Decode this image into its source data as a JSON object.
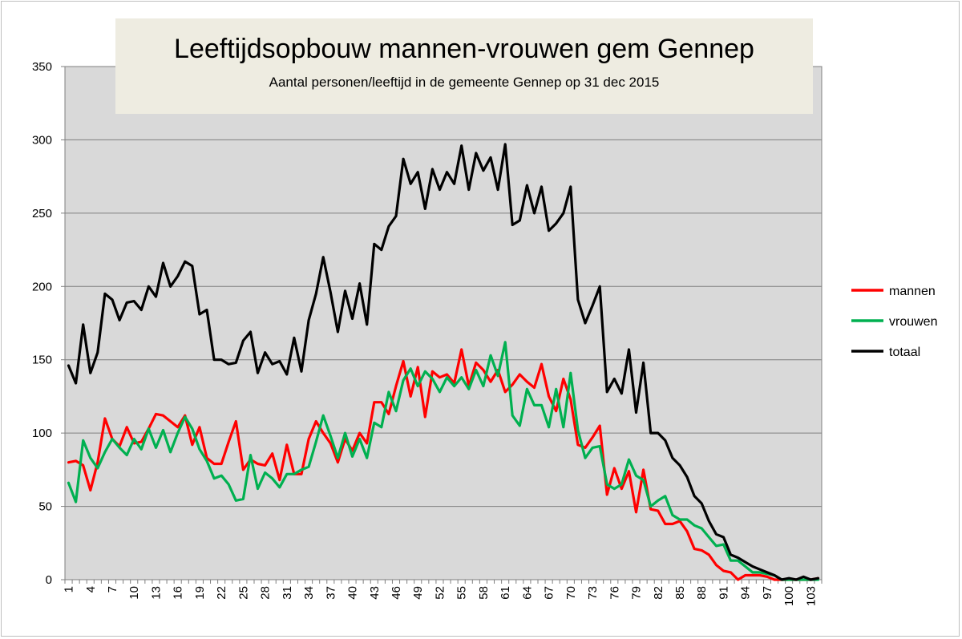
{
  "chart_data": {
    "type": "line",
    "title": "Leeftijdsopbouw mannen-vrouwen gem Gennep",
    "subtitle": "Aantal personen/leeftijd in de gemeente Gennep op 31 dec 2015",
    "xlabel": "",
    "ylabel": "",
    "ylim": [
      0,
      350
    ],
    "yticks": [
      0,
      50,
      100,
      150,
      200,
      250,
      300,
      350
    ],
    "xlim": [
      1,
      104
    ],
    "xticks": [
      1,
      4,
      7,
      10,
      13,
      16,
      19,
      22,
      25,
      28,
      31,
      34,
      37,
      40,
      43,
      46,
      49,
      52,
      55,
      58,
      61,
      64,
      67,
      70,
      73,
      76,
      79,
      82,
      85,
      88,
      91,
      94,
      97,
      100,
      103
    ],
    "grid": "horizontal",
    "legend": "right",
    "plot_background": "#d9d9d9",
    "title_background": "#eeece1",
    "series": [
      {
        "name": "mannen",
        "color": "#ff0000",
        "values": [
          80,
          81,
          78,
          61,
          80,
          110,
          96,
          91,
          104,
          93,
          94,
          103,
          113,
          112,
          108,
          104,
          112,
          92,
          104,
          83,
          79,
          79,
          94,
          108,
          75,
          82,
          79,
          78,
          86,
          68,
          92,
          72,
          72,
          96,
          108,
          100,
          93,
          80,
          96,
          88,
          100,
          93,
          121,
          121,
          113,
          132,
          149,
          125,
          145,
          111,
          142,
          138,
          140,
          134,
          157,
          132,
          148,
          143,
          135,
          143,
          128,
          133,
          140,
          135,
          131,
          147,
          125,
          115,
          137,
          123,
          92,
          90,
          97,
          105,
          58,
          76,
          62,
          74,
          46,
          75,
          48,
          47,
          38,
          38,
          40,
          33,
          21,
          20,
          17,
          10,
          6,
          5,
          0,
          3,
          3,
          3,
          2,
          0,
          0,
          0,
          0,
          0,
          0,
          1
        ]
      },
      {
        "name": "vrouwen",
        "color": "#00b050",
        "values": [
          66,
          53,
          95,
          83,
          76,
          87,
          96,
          90,
          85,
          96,
          89,
          103,
          90,
          102,
          87,
          100,
          111,
          103,
          89,
          81,
          69,
          71,
          65,
          54,
          55,
          85,
          62,
          73,
          69,
          63,
          72,
          72,
          75,
          77,
          94,
          112,
          98,
          83,
          100,
          84,
          96,
          83,
          107,
          104,
          128,
          115,
          136,
          144,
          132,
          142,
          137,
          128,
          138,
          132,
          138,
          130,
          143,
          132,
          153,
          139,
          162,
          112,
          105,
          130,
          119,
          119,
          104,
          130,
          104,
          141,
          102,
          83,
          90,
          91,
          65,
          62,
          65,
          82,
          71,
          68,
          50,
          54,
          57,
          44,
          41,
          41,
          37,
          35,
          29,
          23,
          24,
          13,
          13,
          9,
          5,
          5,
          4,
          3,
          0,
          0,
          0,
          0,
          0,
          0
        ]
      },
      {
        "name": "totaal",
        "color": "#000000",
        "values": [
          146,
          134,
          174,
          141,
          155,
          195,
          191,
          177,
          189,
          190,
          184,
          200,
          193,
          216,
          200,
          207,
          217,
          214,
          181,
          184,
          150,
          150,
          147,
          148,
          163,
          169,
          141,
          155,
          147,
          149,
          140,
          165,
          142,
          177,
          195,
          220,
          196,
          169,
          197,
          178,
          202,
          174,
          229,
          225,
          241,
          248,
          287,
          270,
          278,
          253,
          280,
          266,
          278,
          270,
          296,
          266,
          291,
          279,
          288,
          266,
          297,
          242,
          245,
          269,
          250,
          268,
          238,
          243,
          250,
          268,
          191,
          175,
          187,
          200,
          128,
          137,
          127,
          157,
          114,
          148,
          100,
          100,
          95,
          83,
          78,
          70,
          57,
          52,
          40,
          31,
          29,
          17,
          15,
          12,
          9,
          7,
          5,
          3,
          0,
          1,
          0,
          2,
          0,
          1
        ]
      }
    ]
  }
}
